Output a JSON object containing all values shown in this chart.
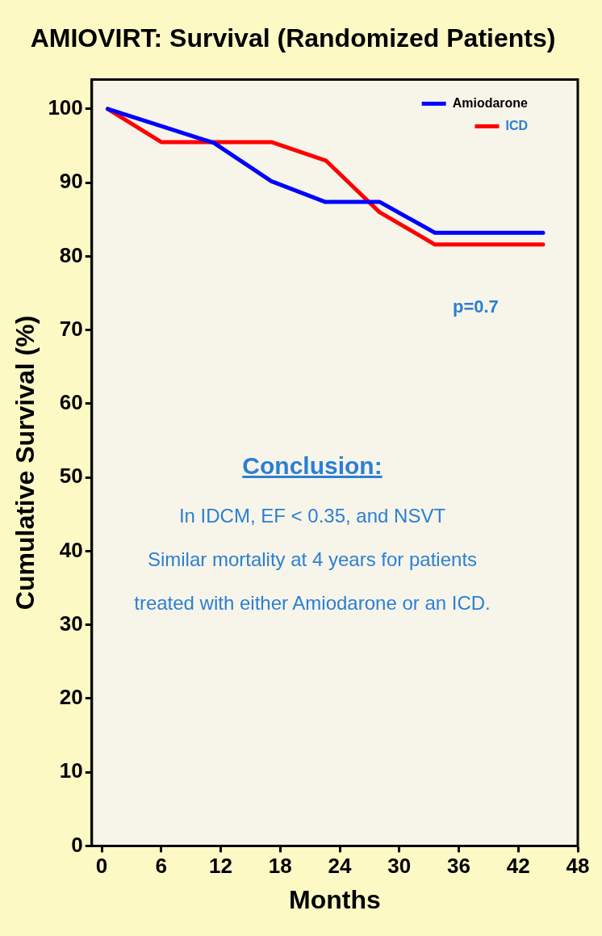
{
  "chart_data": {
    "type": "line",
    "title": "AMIOVIRT: Survival (Randomized Patients)",
    "xlabel": "Months",
    "ylabel": "Cumulative Survival (%)",
    "xlim": [
      -1,
      48
    ],
    "xticks": [
      0,
      6,
      12,
      18,
      24,
      30,
      36,
      42,
      48
    ],
    "ylim": [
      0,
      104
    ],
    "yticks": [
      0,
      10,
      20,
      30,
      40,
      50,
      60,
      70,
      80,
      90,
      100
    ],
    "grid": false,
    "legend": "top right",
    "marker": "none",
    "line_style": "solid",
    "series": [
      {
        "name": "Amiodarone",
        "color": "#0000ff",
        "x": [
          0.6,
          11.3,
          17.1,
          22.5,
          28,
          33.6,
          44.5
        ],
        "values": [
          100,
          95.4,
          90.2,
          87.4,
          87.4,
          83.2,
          83.2
        ]
      },
      {
        "name": "ICD",
        "color": "#ff0000",
        "x": [
          0.6,
          6,
          17.1,
          22.6,
          28,
          33.6,
          44.5
        ],
        "values": [
          100,
          95.5,
          95.5,
          93,
          86,
          81.6,
          81.6
        ]
      }
    ],
    "annotations": [
      "p=0.7",
      "Conclusion:",
      "In IDCM, EF < 0.35, and NSVT",
      "Similar mortality at 4 years for patients",
      "treated with either Amiodarone or an ICD."
    ]
  }
}
